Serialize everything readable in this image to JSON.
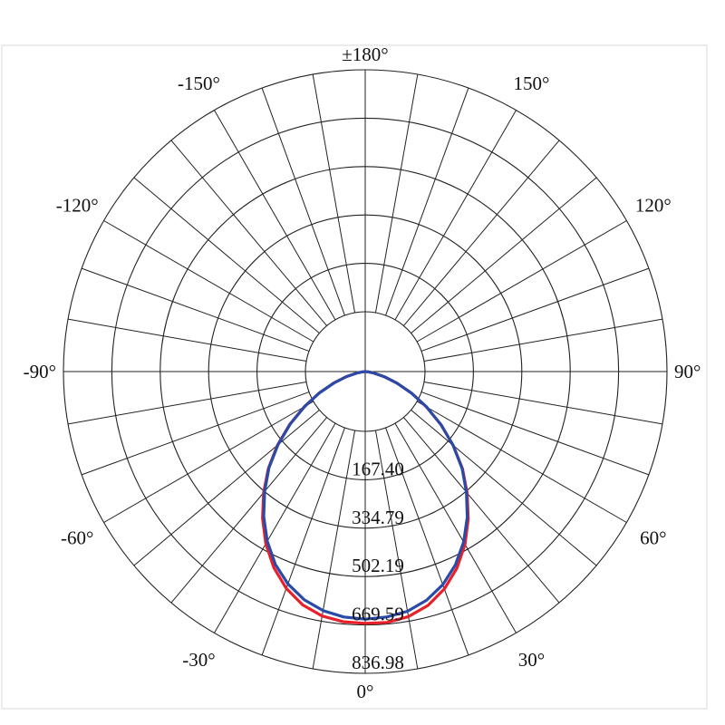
{
  "chart_data": {
    "type": "polar",
    "angle_labels": [
      {
        "deg": 180,
        "text": "±180°"
      },
      {
        "deg": -150,
        "text": "-150°"
      },
      {
        "deg": 150,
        "text": "150°"
      },
      {
        "deg": -120,
        "text": "-120°"
      },
      {
        "deg": 120,
        "text": "120°"
      },
      {
        "deg": -90,
        "text": "-90°"
      },
      {
        "deg": 90,
        "text": "90°"
      },
      {
        "deg": -60,
        "text": "-60°"
      },
      {
        "deg": 60,
        "text": "60°"
      },
      {
        "deg": -30,
        "text": "-30°"
      },
      {
        "deg": 30,
        "text": "30°"
      },
      {
        "deg": 0,
        "text": "0°"
      }
    ],
    "radial_ticks": [
      "167.40",
      "334.79",
      "502.19",
      "669.59",
      "836.98"
    ],
    "radial_tick_values": [
      167.4,
      334.79,
      502.19,
      669.59,
      836.98
    ],
    "radial_max": 1004.38,
    "spoke_step_deg": 10,
    "colors": {
      "grid": "#222222",
      "series_red": "#e8202a",
      "series_blue": "#2a4aa8"
    },
    "series": [
      {
        "color": "#e8202a",
        "angles": [
          0,
          5,
          10,
          15,
          20,
          25,
          30,
          35,
          40,
          45,
          50,
          55,
          60,
          65,
          70,
          75,
          80,
          85,
          90
        ],
        "values_pos": [
          838,
          838,
          828,
          806,
          770,
          722,
          664,
          598,
          528,
          458,
          382,
          308,
          235,
          170,
          112,
          66,
          30,
          10,
          0
        ],
        "values_neg": [
          838,
          836,
          826,
          804,
          768,
          720,
          662,
          596,
          526,
          456,
          381,
          307,
          234,
          169,
          111,
          65,
          29,
          9,
          0
        ]
      },
      {
        "color": "#2a4aa8",
        "angles": [
          0,
          5,
          10,
          15,
          20,
          25,
          30,
          35,
          40,
          45,
          50,
          55,
          60,
          65,
          70,
          75,
          80,
          85,
          90
        ],
        "values_pos": [
          824,
          820,
          810,
          788,
          755,
          710,
          655,
          592,
          524,
          456,
          382,
          308,
          236,
          170,
          112,
          66,
          30,
          10,
          0
        ],
        "values_neg": [
          824,
          820,
          808,
          786,
          752,
          708,
          652,
          589,
          521,
          453,
          379,
          305,
          233,
          168,
          110,
          64,
          28,
          9,
          0
        ]
      }
    ]
  }
}
